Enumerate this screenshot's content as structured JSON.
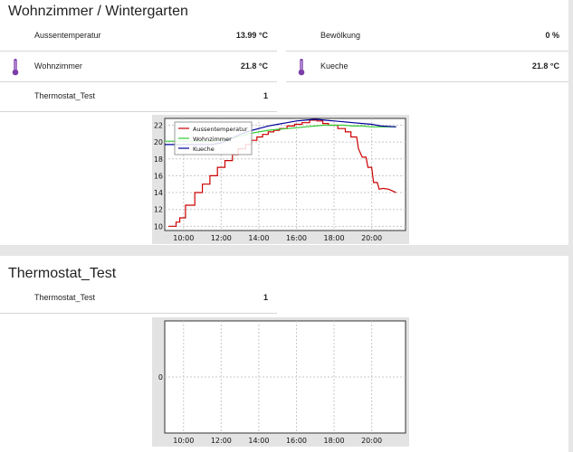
{
  "card1": {
    "title": "Wohnzimmer / Wintergarten",
    "rows": [
      {
        "label": "Aussentemperatur",
        "value": "13.99 °C"
      },
      {
        "label": "Bewölkung",
        "value": "0 %"
      },
      {
        "label": "Wohnzimmer",
        "value": "21.8 °C",
        "icon": "thermometer-icon"
      },
      {
        "label": "Kueche",
        "value": "21.8 °C",
        "icon": "thermometer-icon"
      },
      {
        "label": "Thermostat_Test",
        "value": "1"
      }
    ]
  },
  "card2": {
    "title": "Thermostat_Test",
    "rows": [
      {
        "label": "Thermostat_Test",
        "value": "1"
      }
    ]
  },
  "colors": {
    "aussentemperatur": "#cc0000",
    "wohnzimmer": "#33cc33",
    "kueche": "#000099",
    "thermometer": "#7b3fa8"
  },
  "chart_data": [
    {
      "type": "line",
      "x_ticks": [
        "10:00",
        "12:00",
        "14:00",
        "16:00",
        "18:00",
        "20:00"
      ],
      "y_ticks": [
        10,
        12,
        14,
        16,
        18,
        20,
        22
      ],
      "xlim": [
        9.0,
        21.8
      ],
      "ylim": [
        9.5,
        22.8
      ],
      "grid": true,
      "legend_position": "top-left",
      "series": [
        {
          "name": "Aussentemperatur",
          "color": "#cc0000",
          "step": true,
          "points": [
            [
              9.2,
              10
            ],
            [
              9.6,
              10
            ],
            [
              9.6,
              10.5
            ],
            [
              9.8,
              10.5
            ],
            [
              9.8,
              11
            ],
            [
              10.1,
              11
            ],
            [
              10.1,
              12.5
            ],
            [
              10.6,
              12.5
            ],
            [
              10.6,
              14
            ],
            [
              11.0,
              14
            ],
            [
              11.0,
              15
            ],
            [
              11.4,
              15
            ],
            [
              11.4,
              16
            ],
            [
              11.8,
              16
            ],
            [
              11.8,
              17
            ],
            [
              12.2,
              17
            ],
            [
              12.2,
              17.8
            ],
            [
              12.6,
              17.8
            ],
            [
              12.6,
              18.5
            ],
            [
              12.9,
              18.5
            ],
            [
              12.9,
              19.2
            ],
            [
              13.3,
              19.2
            ],
            [
              13.3,
              19.7
            ],
            [
              13.6,
              19.7
            ],
            [
              13.6,
              20.2
            ],
            [
              13.9,
              20.2
            ],
            [
              13.9,
              20.6
            ],
            [
              14.2,
              20.6
            ],
            [
              14.2,
              20.9
            ],
            [
              14.5,
              20.9
            ],
            [
              14.5,
              21.2
            ],
            [
              14.8,
              21.2
            ],
            [
              14.8,
              21.4
            ],
            [
              15.1,
              21.4
            ],
            [
              15.1,
              21.6
            ],
            [
              15.5,
              21.6
            ],
            [
              15.5,
              21.9
            ],
            [
              15.9,
              21.9
            ],
            [
              15.9,
              22.1
            ],
            [
              16.3,
              22.1
            ],
            [
              16.3,
              22.3
            ],
            [
              16.7,
              22.3
            ],
            [
              16.7,
              22.6
            ],
            [
              17.1,
              22.6
            ],
            [
              17.1,
              22.5
            ],
            [
              17.4,
              22.5
            ],
            [
              17.4,
              22.2
            ],
            [
              17.7,
              22.2
            ],
            [
              17.7,
              22.0
            ],
            [
              18.2,
              22.0
            ],
            [
              18.2,
              21.6
            ],
            [
              18.6,
              21.6
            ],
            [
              18.6,
              21.2
            ],
            [
              18.9,
              21.2
            ],
            [
              18.9,
              20.6
            ],
            [
              19.2,
              20.6
            ],
            [
              19.3,
              19.2
            ],
            [
              19.5,
              18.2
            ],
            [
              19.7,
              18.2
            ],
            [
              19.8,
              17
            ],
            [
              20.0,
              17
            ],
            [
              20.1,
              15.2
            ],
            [
              20.3,
              15.2
            ],
            [
              20.4,
              14.4
            ],
            [
              20.6,
              14.5
            ],
            [
              20.9,
              14.4
            ],
            [
              21.1,
              14.2
            ],
            [
              21.3,
              13.99
            ]
          ]
        },
        {
          "name": "Wohnzimmer",
          "color": "#33cc33",
          "points": [
            [
              9.0,
              20.1
            ],
            [
              9.5,
              20.1
            ],
            [
              10.0,
              20.1
            ],
            [
              10.5,
              20.1
            ],
            [
              11.0,
              20.1
            ],
            [
              11.5,
              20.1
            ],
            [
              12.0,
              20.2
            ],
            [
              12.5,
              20.4
            ],
            [
              13.0,
              20.7
            ],
            [
              13.5,
              21.0
            ],
            [
              14.0,
              21.2
            ],
            [
              14.5,
              21.4
            ],
            [
              15.0,
              21.5
            ],
            [
              15.5,
              21.6
            ],
            [
              16.0,
              21.7
            ],
            [
              16.5,
              21.8
            ],
            [
              17.0,
              21.9
            ],
            [
              17.5,
              22.0
            ],
            [
              18.0,
              22.0
            ],
            [
              18.5,
              22.0
            ],
            [
              19.0,
              21.9
            ],
            [
              19.5,
              21.9
            ],
            [
              20.0,
              21.8
            ],
            [
              20.5,
              21.8
            ],
            [
              21.3,
              21.8
            ]
          ]
        },
        {
          "name": "Kueche",
          "color": "#000099",
          "points": [
            [
              9.0,
              19.7
            ],
            [
              9.5,
              19.7
            ],
            [
              10.0,
              19.7
            ],
            [
              10.5,
              19.7
            ],
            [
              11.0,
              19.7
            ],
            [
              11.5,
              19.7
            ],
            [
              12.0,
              19.9
            ],
            [
              12.5,
              20.4
            ],
            [
              13.0,
              20.9
            ],
            [
              13.5,
              21.3
            ],
            [
              14.0,
              21.6
            ],
            [
              14.5,
              21.9
            ],
            [
              15.0,
              22.1
            ],
            [
              15.5,
              22.3
            ],
            [
              16.0,
              22.5
            ],
            [
              16.5,
              22.6
            ],
            [
              17.0,
              22.7
            ],
            [
              17.5,
              22.6
            ],
            [
              18.0,
              22.5
            ],
            [
              18.5,
              22.4
            ],
            [
              19.0,
              22.3
            ],
            [
              19.5,
              22.2
            ],
            [
              20.0,
              22.1
            ],
            [
              20.5,
              21.9
            ],
            [
              21.3,
              21.8
            ]
          ]
        }
      ]
    },
    {
      "type": "line",
      "x_ticks": [
        "10:00",
        "12:00",
        "14:00",
        "16:00",
        "18:00",
        "20:00"
      ],
      "y_ticks": [
        0
      ],
      "xlim": [
        9.0,
        21.8
      ],
      "grid": true,
      "series": []
    }
  ]
}
